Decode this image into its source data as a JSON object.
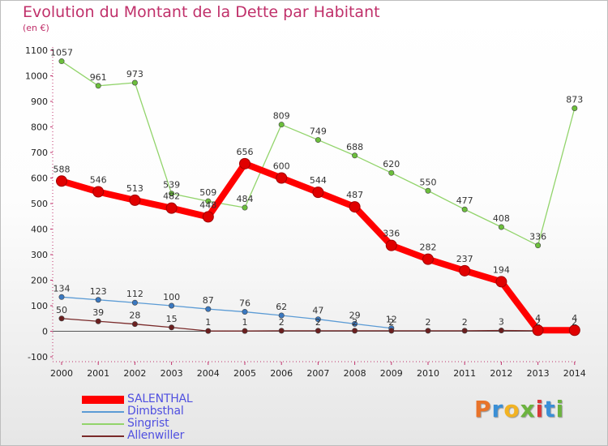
{
  "header": {
    "title": "Evolution du Montant de la Dette par Habitant",
    "subtitle": "(en €)"
  },
  "logo": {
    "text": "Proxiti",
    "colors": [
      "#e8732a",
      "#3a8fd6",
      "#f2b323",
      "#6cb33f",
      "#d9383a",
      "#3a8fd6",
      "#6cb33f"
    ]
  },
  "chart_data": {
    "type": "line",
    "x": [
      "2000",
      "2001",
      "2002",
      "2003",
      "2004",
      "2005",
      "2006",
      "2007",
      "2008",
      "2009",
      "2010",
      "2011",
      "2012",
      "2013",
      "2014"
    ],
    "xlabel": "",
    "ylabel": "",
    "ylim": [
      -100,
      1100
    ],
    "yticks": [
      -100,
      0,
      100,
      200,
      300,
      400,
      500,
      600,
      700,
      800,
      900,
      1000,
      1100
    ],
    "grid": false,
    "legend": "bottom-left",
    "series": [
      {
        "name": "SALENTHAL",
        "color": "#ff0000",
        "point_color": "#e00000",
        "width": "thick",
        "values": [
          588,
          546,
          513,
          482,
          448,
          656,
          600,
          544,
          487,
          336,
          282,
          237,
          194,
          4,
          4
        ],
        "labels": [
          "588",
          "546",
          "513",
          "482",
          "448",
          "656",
          "600",
          "544",
          "487",
          "336",
          "282",
          "237",
          "194",
          "4",
          "4"
        ]
      },
      {
        "name": "Dimbsthal",
        "color": "#5b9bd5",
        "point_color": "#3a78c0",
        "width": "thin",
        "values": [
          134,
          123,
          112,
          100,
          87,
          76,
          62,
          47,
          29,
          12,
          null,
          null,
          null,
          null,
          null
        ],
        "labels": [
          "134",
          "123",
          "112",
          "100",
          "87",
          "76",
          "62",
          "47",
          "29",
          "12",
          "",
          "",
          "",
          "",
          ""
        ]
      },
      {
        "name": "Singrist",
        "color": "#92d46b",
        "point_color": "#6cbf3c",
        "width": "thin",
        "values": [
          1057,
          961,
          973,
          539,
          509,
          484,
          809,
          749,
          688,
          620,
          550,
          477,
          408,
          336,
          873
        ],
        "labels": [
          "1057",
          "961",
          "973",
          "539",
          "509",
          "484",
          "809",
          "749",
          "688",
          "620",
          "550",
          "477",
          "408",
          "336",
          "873"
        ]
      },
      {
        "name": "Allenwiller",
        "color": "#7a2a2a",
        "point_color": "#6b1f1f",
        "width": "thin",
        "values": [
          50,
          39,
          28,
          15,
          1,
          1,
          2,
          2,
          2,
          2,
          2,
          2,
          3,
          2,
          2
        ],
        "labels": [
          "50",
          "39",
          "28",
          "15",
          "1",
          "1",
          "2",
          "2",
          "2",
          "2",
          "2",
          "2",
          "3",
          "2",
          "2"
        ]
      }
    ]
  }
}
